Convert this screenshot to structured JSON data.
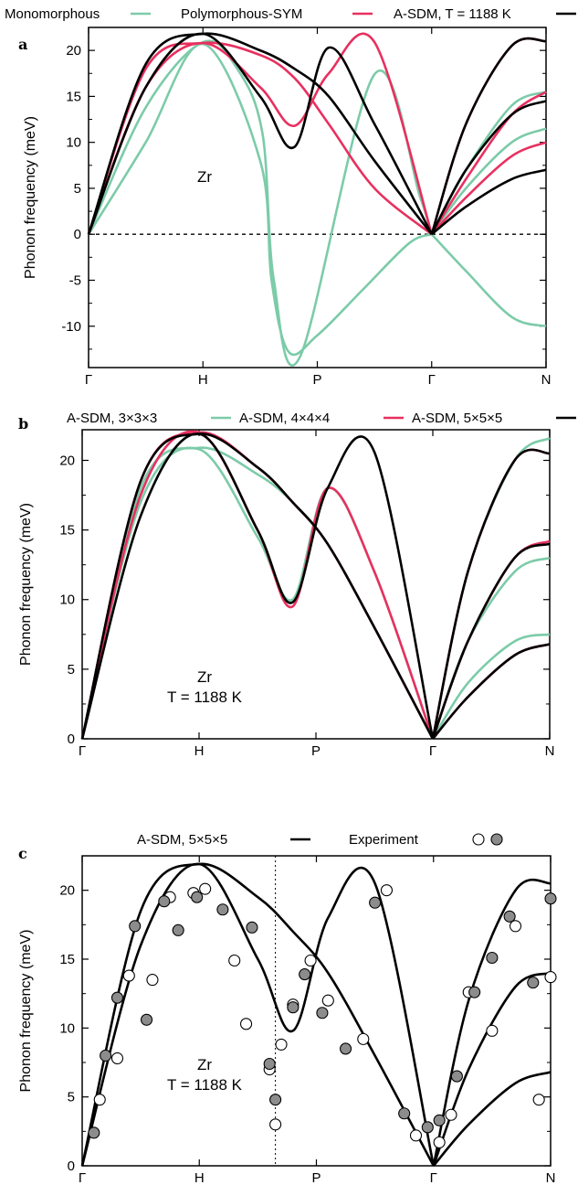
{
  "colors": {
    "green": "#7ccba9",
    "red": "#e8305f",
    "black": "#000000",
    "marker_fill": "#8c8c8c"
  },
  "chart_data": [
    {
      "panel": "a",
      "type": "line",
      "ylabel": "Phonon frequency (meV)",
      "ylim": [
        -14.5,
        22.5
      ],
      "yticks": [
        -10,
        -5,
        0,
        5,
        10,
        15,
        20
      ],
      "ytick_labels": [
        "-10",
        "-5",
        "0",
        "5",
        "10",
        "15",
        "20"
      ],
      "xticks": [
        0,
        1,
        2,
        3,
        4
      ],
      "xtick_labels": [
        "Γ",
        "H",
        "P",
        "Γ",
        "N"
      ],
      "zero_line": true,
      "annotation": "Zr",
      "legend": [
        "Monomorphous",
        "Polymorphous-SYM",
        "A-SDM, T = 1188 K"
      ],
      "series": [
        {
          "name": "Monomorphous",
          "color": "green",
          "segments": [
            {
              "x": [
                0,
                0.5,
                1,
                1.5,
                1.6,
                1.75,
                2,
                2.4,
                2.8,
                3
              ],
              "y": [
                0,
                10,
                20.7,
                8,
                -5,
                -12.8,
                -11,
                -6,
                -1,
                0
              ]
            },
            {
              "x": [
                0,
                0.5,
                1,
                1.3,
                1.52,
                1.62,
                1.85,
                2.5,
                2.9,
                3
              ],
              "y": [
                0,
                13.8,
                20.9,
                18,
                11,
                -5,
                -13.3,
                17.4,
                4,
                0
              ]
            },
            {
              "x": [
                3,
                3.3,
                3.7,
                4
              ],
              "y": [
                0,
                -4,
                -9,
                -10
              ]
            },
            {
              "x": [
                3,
                3.3,
                3.7,
                4
              ],
              "y": [
                0,
                5,
                10,
                11.5
              ]
            },
            {
              "x": [
                3,
                3.3,
                3.7,
                4
              ],
              "y": [
                0,
                7,
                14,
                15.5
              ]
            }
          ]
        },
        {
          "name": "Polymorphous-SYM",
          "color": "red",
          "segments": [
            {
              "x": [
                0,
                0.5,
                1,
                1.5,
                1.8,
                2.1,
                2.5,
                3
              ],
              "y": [
                0,
                18,
                20.8,
                19.5,
                17,
                12,
                5,
                0
              ]
            },
            {
              "x": [
                0,
                0.5,
                1,
                1.5,
                1.8,
                2.1,
                2.5,
                3
              ],
              "y": [
                0,
                16,
                20.8,
                16,
                11.8,
                17.5,
                20.9,
                0
              ]
            },
            {
              "x": [
                3,
                3.3,
                3.7,
                4
              ],
              "y": [
                0,
                4,
                8.5,
                10
              ]
            },
            {
              "x": [
                3,
                3.3,
                3.7,
                4
              ],
              "y": [
                0,
                6,
                13,
                15.5
              ]
            },
            {
              "x": [
                3,
                3.3,
                3.7,
                4
              ],
              "y": [
                0,
                12,
                20.5,
                21
              ]
            }
          ]
        },
        {
          "name": "A-SDM, T = 1188 K",
          "color": "black",
          "segments": [
            {
              "x": [
                0,
                0.5,
                1,
                1.5,
                1.8,
                2.1,
                2.5,
                3
              ],
              "y": [
                0,
                16,
                21.8,
                15,
                9.5,
                20.3,
                12,
                0
              ]
            },
            {
              "x": [
                0,
                0.5,
                1,
                1.5,
                1.8,
                2.1,
                2.5,
                3
              ],
              "y": [
                0,
                18.5,
                21.8,
                20,
                18,
                15,
                8,
                0
              ]
            },
            {
              "x": [
                3,
                3.3,
                3.7,
                4
              ],
              "y": [
                0,
                3,
                6,
                7
              ]
            },
            {
              "x": [
                3,
                3.3,
                3.7,
                4
              ],
              "y": [
                0,
                7,
                13,
                14.5
              ]
            },
            {
              "x": [
                3,
                3.3,
                3.7,
                4
              ],
              "y": [
                0,
                12,
                20.5,
                21
              ]
            }
          ]
        }
      ]
    },
    {
      "panel": "b",
      "type": "line",
      "ylabel": "Phonon frequency (meV)",
      "ylim": [
        0,
        22.2
      ],
      "yticks": [
        0,
        5,
        10,
        15,
        20
      ],
      "ytick_labels": [
        "0",
        "5",
        "10",
        "15",
        "20"
      ],
      "xticks": [
        0,
        1,
        2,
        3,
        4
      ],
      "xtick_labels": [
        "Γ",
        "H",
        "P",
        "Γ",
        "N"
      ],
      "annotation": [
        "Zr",
        "T = 1188 K"
      ],
      "legend": [
        "A-SDM, 3×3×3",
        "A-SDM, 4×4×4",
        "A-SDM, 5×5×5"
      ],
      "series": [
        {
          "name": "A-SDM, 3×3×3",
          "color": "green",
          "segments": [
            {
              "x": [
                0,
                0.5,
                1,
                1.5,
                1.8,
                2.1,
                2.5,
                3
              ],
              "y": [
                0,
                17,
                20.8,
                14.5,
                10,
                18,
                12,
                0
              ]
            },
            {
              "x": [
                0,
                0.5,
                1,
                1.5,
                1.8,
                2.1,
                2.5,
                3
              ],
              "y": [
                0,
                18,
                20.9,
                19,
                17,
                14,
                8,
                0
              ]
            },
            {
              "x": [
                3,
                3.3,
                3.7,
                4
              ],
              "y": [
                0,
                4,
                7,
                7.5
              ]
            },
            {
              "x": [
                3,
                3.3,
                3.7,
                4
              ],
              "y": [
                0,
                7,
                12,
                13
              ]
            },
            {
              "x": [
                3,
                3.3,
                3.7,
                4
              ],
              "y": [
                0,
                12,
                20,
                21.6
              ]
            }
          ]
        },
        {
          "name": "A-SDM, 4×4×4",
          "color": "red",
          "segments": [
            {
              "x": [
                0,
                0.5,
                1,
                1.5,
                1.8,
                2.1,
                2.5,
                3
              ],
              "y": [
                0,
                17.5,
                22,
                15,
                9.5,
                18,
                12,
                0
              ]
            },
            {
              "x": [
                0,
                0.5,
                1,
                1.5,
                1.8,
                2.1,
                2.5,
                3
              ],
              "y": [
                0,
                18.5,
                22,
                19.5,
                17,
                14,
                8,
                0
              ]
            },
            {
              "x": [
                3,
                3.3,
                3.7,
                4
              ],
              "y": [
                0,
                3,
                6,
                6.8
              ]
            },
            {
              "x": [
                3,
                3.3,
                3.7,
                4
              ],
              "y": [
                0,
                7,
                13,
                14.2
              ]
            },
            {
              "x": [
                3,
                3.3,
                3.7,
                4
              ],
              "y": [
                0,
                12,
                20,
                20.5
              ]
            }
          ]
        },
        {
          "name": "A-SDM, 5×5×5",
          "color": "black",
          "segments": [
            {
              "x": [
                0,
                0.5,
                1,
                1.5,
                1.8,
                2.1,
                2.5,
                3
              ],
              "y": [
                0,
                16,
                21.9,
                15,
                9.8,
                18,
                20.6,
                0
              ]
            },
            {
              "x": [
                0,
                0.5,
                1,
                1.5,
                1.8,
                2.1,
                2.5,
                3
              ],
              "y": [
                0,
                18.5,
                21.9,
                19.5,
                17,
                14,
                8,
                0
              ]
            },
            {
              "x": [
                3,
                3.3,
                3.7,
                4
              ],
              "y": [
                0,
                3,
                6,
                6.8
              ]
            },
            {
              "x": [
                3,
                3.3,
                3.7,
                4
              ],
              "y": [
                0,
                7,
                13,
                14
              ]
            },
            {
              "x": [
                3,
                3.3,
                3.7,
                4
              ],
              "y": [
                0,
                12,
                20,
                20.5
              ]
            }
          ]
        }
      ]
    },
    {
      "panel": "c",
      "type": "scatter",
      "ylabel": "Phonon frequency (meV)",
      "ylim": [
        0,
        22.5
      ],
      "yticks": [
        0,
        5,
        10,
        15,
        20
      ],
      "ytick_labels": [
        "0",
        "5",
        "10",
        "15",
        "20"
      ],
      "xticks": [
        0,
        1,
        2,
        3,
        4
      ],
      "xtick_labels": [
        "Γ",
        "H",
        "P",
        "Γ",
        "N"
      ],
      "vline_x": 1.65,
      "annotation": [
        "Zr",
        "T = 1188 K"
      ],
      "legend": [
        "A-SDM, 5×5×5",
        "Experiment"
      ],
      "series": [
        {
          "name": "A-SDM, 5×5×5",
          "color": "black",
          "segments": [
            {
              "x": [
                0,
                0.5,
                1,
                1.5,
                1.8,
                2.1,
                2.5,
                3
              ],
              "y": [
                0,
                16,
                21.9,
                15,
                9.8,
                18,
                20.5,
                0
              ]
            },
            {
              "x": [
                0,
                0.5,
                1,
                1.5,
                1.8,
                2.1,
                2.5,
                3
              ],
              "y": [
                0,
                18.5,
                21.9,
                19.5,
                17,
                14,
                8,
                0
              ]
            },
            {
              "x": [
                3,
                3.3,
                3.7,
                4
              ],
              "y": [
                0,
                3,
                6,
                6.8
              ]
            },
            {
              "x": [
                3,
                3.3,
                3.7,
                4
              ],
              "y": [
                0,
                7,
                13,
                14
              ]
            },
            {
              "x": [
                3,
                3.3,
                3.7,
                4
              ],
              "y": [
                0,
                12,
                20,
                20.5
              ]
            }
          ]
        }
      ],
      "experiment_open": {
        "x": [
          0.15,
          0.3,
          0.4,
          0.6,
          0.75,
          0.95,
          1.05,
          1.3,
          1.4,
          1.6,
          1.7,
          1.65,
          1.8,
          1.95,
          2.1,
          2.4,
          2.6,
          2.85,
          3.05,
          3.15,
          3.3,
          3.5,
          3.7,
          3.9,
          4.0
        ],
        "y": [
          4.8,
          7.8,
          13.8,
          13.5,
          19.5,
          19.8,
          20.1,
          14.9,
          10.3,
          7,
          8.8,
          3,
          11.7,
          14.9,
          12,
          9.2,
          20,
          2.2,
          1.7,
          3.7,
          12.6,
          9.8,
          17.4,
          4.8,
          13.7
        ]
      },
      "experiment_filled": {
        "x": [
          0.1,
          0.2,
          0.3,
          0.45,
          0.55,
          0.7,
          0.82,
          0.98,
          1.2,
          1.45,
          1.6,
          1.65,
          1.8,
          1.9,
          2.05,
          2.25,
          2.5,
          2.75,
          2.95,
          3.05,
          3.2,
          3.35,
          3.5,
          3.65,
          3.85,
          4.0
        ],
        "y": [
          2.4,
          8,
          12.2,
          17.4,
          10.6,
          19.2,
          17.1,
          19.5,
          18.6,
          17.3,
          7.4,
          4.8,
          11.5,
          13.9,
          11.1,
          8.5,
          19.1,
          3.8,
          2.8,
          3.3,
          6.5,
          12.6,
          15.1,
          18.1,
          13.3,
          19.4
        ]
      }
    }
  ]
}
